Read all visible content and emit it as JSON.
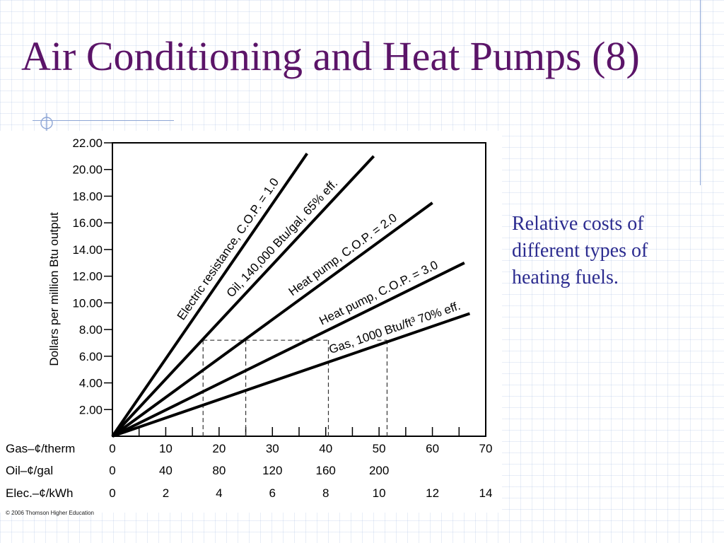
{
  "slide": {
    "title": "Air Conditioning and Heat Pumps (8)",
    "caption": "Relative costs of different types of heating fuels.",
    "copyright": "© 2006 Thomson Higher Education",
    "colors": {
      "title": "#5b1468",
      "caption": "#2b2b8f",
      "accent_line": "#8ea6d6"
    },
    "icons": [
      "crosshair-icon"
    ]
  },
  "chart_data": {
    "type": "line",
    "ylabel": "Dollars per million Btu output",
    "ylim": [
      0,
      22
    ],
    "y_ticks": [
      "22.00",
      "20.00",
      "18.00",
      "16.00",
      "14.00",
      "12.00",
      "10.00",
      "8.00",
      "6.00",
      "4.00",
      "2.00"
    ],
    "y_tick_values": [
      22,
      20,
      18,
      16,
      14,
      12,
      10,
      8,
      6,
      4,
      2
    ],
    "x_primary_max": 70,
    "x_scales": [
      {
        "label": "Gas–¢/therm",
        "ticks": [
          "0",
          "10",
          "20",
          "30",
          "40",
          "50",
          "60",
          "70"
        ],
        "values": [
          0,
          10,
          20,
          30,
          40,
          50,
          60,
          70
        ]
      },
      {
        "label": "Oil–¢/gal",
        "ticks": [
          "0",
          "40",
          "80",
          "120",
          "160",
          "200"
        ],
        "values": [
          0,
          40,
          80,
          120,
          160,
          200
        ],
        "gas_equiv_factor": 0.25
      },
      {
        "label": "Elec.–¢/kWh",
        "ticks": [
          "0",
          "2",
          "4",
          "6",
          "8",
          "10",
          "12",
          "14"
        ],
        "values": [
          0,
          2,
          4,
          6,
          8,
          10,
          12,
          14
        ],
        "gas_equiv_factor": 5
      }
    ],
    "series": [
      {
        "name": "Electric resistance, C.O.P. = 1.0",
        "x": [
          0,
          36.5
        ],
        "y": [
          0,
          21.2
        ]
      },
      {
        "name": "Oil, 140,000 Btu/gal, 65% eff.",
        "x": [
          0,
          49
        ],
        "y": [
          0,
          21.0
        ]
      },
      {
        "name": "Heat pump, C.O.P. = 2.0",
        "x": [
          0,
          60
        ],
        "y": [
          0,
          17.5
        ]
      },
      {
        "name": "Heat pump, C.O.P. = 3.0",
        "x": [
          0,
          66
        ],
        "y": [
          0,
          13.0
        ]
      },
      {
        "name": "Gas, 1000 Btu/ft³ 70% eff.",
        "x": [
          0,
          67
        ],
        "y": [
          0,
          9.2
        ]
      }
    ],
    "reference_level_y": 7.2,
    "reference_x": [
      17,
      25,
      40.5,
      51.5
    ],
    "grid": false
  }
}
